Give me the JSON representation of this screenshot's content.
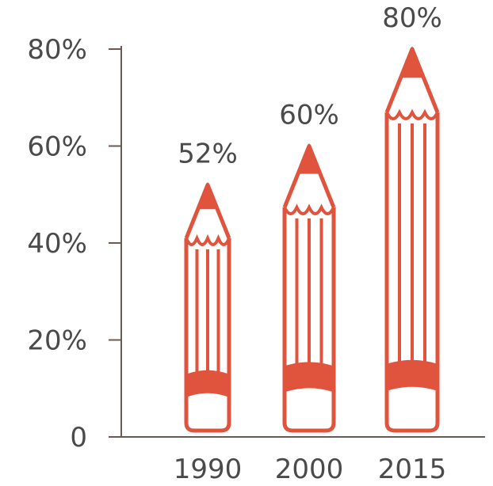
{
  "chart_data": {
    "type": "bar",
    "mark_style": "pencil",
    "categories": [
      "1990",
      "2000",
      "2015"
    ],
    "values": [
      52,
      60,
      80
    ],
    "data_labels": [
      "52%",
      "60%",
      "80%"
    ],
    "y_ticks": [
      0,
      20,
      40,
      60,
      80
    ],
    "y_tick_labels": [
      "0",
      "20%",
      "40%",
      "60%",
      "80%"
    ],
    "ylim": [
      0,
      80
    ],
    "grid": false,
    "legend": "none",
    "title": "",
    "xlabel": "",
    "ylabel": "",
    "colors": {
      "bar": "#e0533d",
      "axis": "#6b5a52",
      "text": "#4a4a4a"
    }
  }
}
